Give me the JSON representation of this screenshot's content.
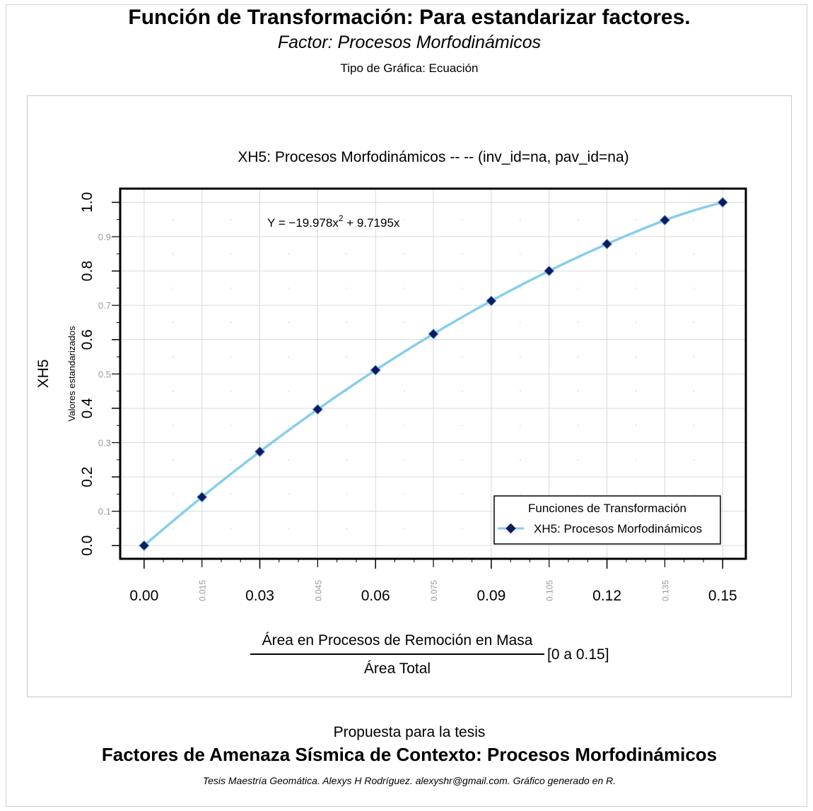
{
  "header": {
    "title": "Función de Transformación: Para estandarizar factores.",
    "subtitle": "Factor: Procesos Morfodinámicos",
    "chart_type_label": "Tipo de Gráfica: Ecuación"
  },
  "chart_data": {
    "type": "line",
    "title": "XH5: Procesos Morfodinámicos --   -- (inv_id=na, pav_id=na)",
    "equation": {
      "prefix": "Y = ",
      "a": "−19.978x",
      "exp": "2",
      "b": " + 9.7195x"
    },
    "xlabel_numerator": "Área en Procesos de Remoción en Masa",
    "xlabel_denominator": "Área Total",
    "xlabel_range": "[0 a 0.15]",
    "ylabel_outer": "XH5",
    "ylabel_inner": "Valores estandarizados",
    "xlim": [
      -0.0062,
      0.156
    ],
    "ylim": [
      -0.0385,
      1.04
    ],
    "x_major_ticks": [
      "0.00",
      "0.03",
      "0.06",
      "0.09",
      "0.12",
      "0.15"
    ],
    "x_minor_ticks": [
      "0.015",
      "0.045",
      "0.075",
      "0.105",
      "0.135"
    ],
    "y_major_ticks": [
      "0.0",
      "0.2",
      "0.4",
      "0.6",
      "0.8",
      "1.0"
    ],
    "y_minor_ticks": [
      "0.1",
      "0.3",
      "0.5",
      "0.7",
      "0.9"
    ],
    "grid": true,
    "legend_position": "bottom-right",
    "series": [
      {
        "name": "XH5: Procesos Morfodinámicos",
        "color": "#87ceeb",
        "marker_color": "#0d1a5e",
        "x": [
          0,
          0.015,
          0.03,
          0.045,
          0.06,
          0.075,
          0.09,
          0.105,
          0.12,
          0.135,
          0.15
        ],
        "y": [
          0,
          0.1413,
          0.2736,
          0.3969,
          0.5112,
          0.6166,
          0.7129,
          0.8003,
          0.8787,
          0.9481,
          1.0
        ]
      }
    ],
    "legend_title": "Funciones de Transformación"
  },
  "footer": {
    "line1": "Propuesta para la tesis",
    "line2": "Factores de Amenaza Sísmica de Contexto: Procesos Morfodinámicos",
    "credit": "Tesis Maestría Geomática. Alexys H Rodríguez. alexyshr@gmail.com. Gráfico generado en R."
  }
}
